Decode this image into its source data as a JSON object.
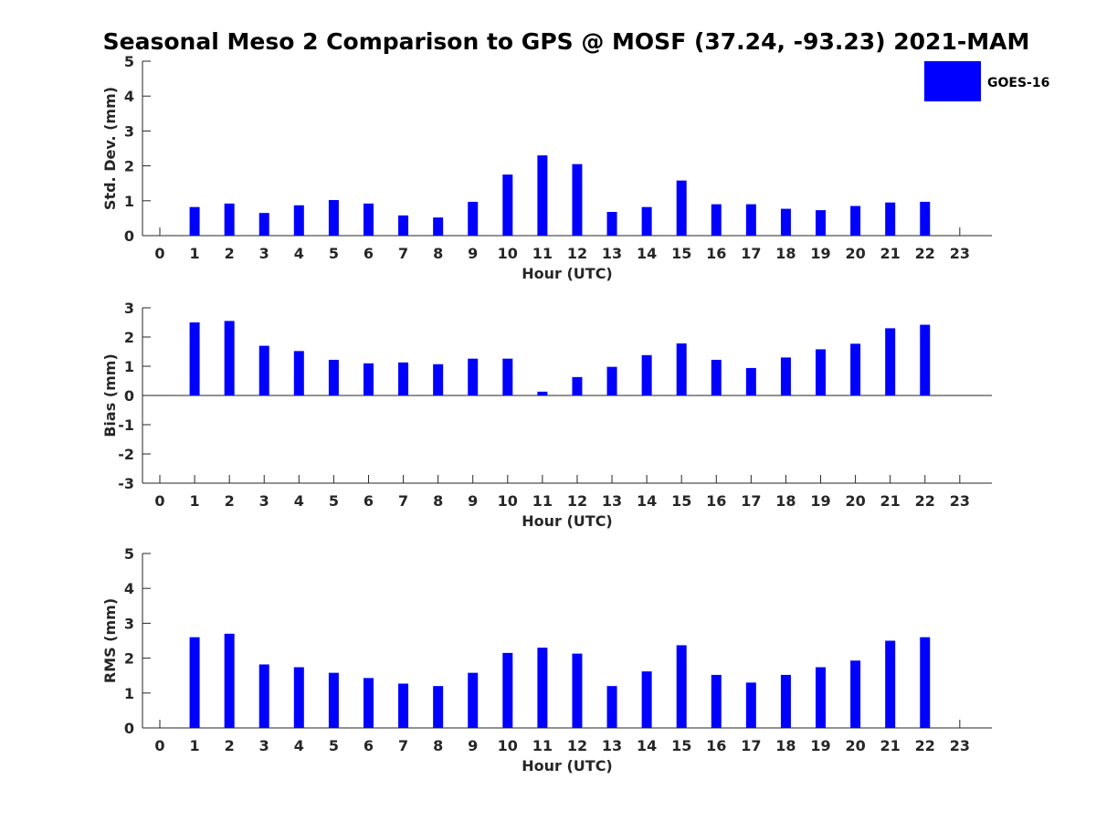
{
  "chart_data": {
    "type": "bar",
    "title": "Seasonal Meso 2 Comparison to GPS @ MOSF (37.24, -93.23) 2021-MAM",
    "legend": {
      "label": "GOES-16",
      "placement": "top-right"
    },
    "bar_color": "#0000ff",
    "axis_color": "#262626",
    "categories": [
      "0",
      "1",
      "2",
      "3",
      "4",
      "5",
      "6",
      "7",
      "8",
      "9",
      "10",
      "11",
      "12",
      "13",
      "14",
      "15",
      "16",
      "17",
      "18",
      "19",
      "20",
      "21",
      "22",
      "23"
    ],
    "panels": [
      {
        "name": "std-dev",
        "xlabel": "Hour (UTC)",
        "ylabel": "Std. Dev. (mm)",
        "ylim": [
          0,
          5
        ],
        "yticks": [
          "0",
          "1",
          "2",
          "3",
          "4",
          "5"
        ],
        "values": [
          null,
          0.82,
          0.92,
          0.65,
          0.87,
          1.02,
          0.92,
          0.58,
          0.52,
          0.97,
          1.75,
          2.3,
          2.05,
          0.68,
          0.82,
          1.58,
          0.9,
          0.9,
          0.77,
          0.73,
          0.85,
          0.95,
          0.97,
          null
        ]
      },
      {
        "name": "bias",
        "xlabel": "Hour (UTC)",
        "ylabel": "Bias (mm)",
        "ylim": [
          -3,
          3
        ],
        "yticks": [
          "-3",
          "-2",
          "-1",
          "0",
          "1",
          "2",
          "3"
        ],
        "zero_line": true,
        "values": [
          null,
          2.5,
          2.55,
          1.7,
          1.52,
          1.22,
          1.1,
          1.13,
          1.07,
          1.26,
          1.26,
          0.13,
          0.63,
          0.98,
          1.38,
          1.78,
          1.22,
          0.94,
          1.3,
          1.58,
          1.77,
          2.3,
          2.42,
          null
        ]
      },
      {
        "name": "rms",
        "xlabel": "Hour (UTC)",
        "ylabel": "RMS (mm)",
        "ylim": [
          0,
          5
        ],
        "yticks": [
          "0",
          "1",
          "2",
          "3",
          "4",
          "5"
        ],
        "values": [
          null,
          2.6,
          2.7,
          1.82,
          1.74,
          1.58,
          1.43,
          1.27,
          1.2,
          1.58,
          2.15,
          2.3,
          2.13,
          1.2,
          1.62,
          2.37,
          1.52,
          1.3,
          1.52,
          1.74,
          1.93,
          2.5,
          2.6,
          null
        ]
      }
    ]
  }
}
